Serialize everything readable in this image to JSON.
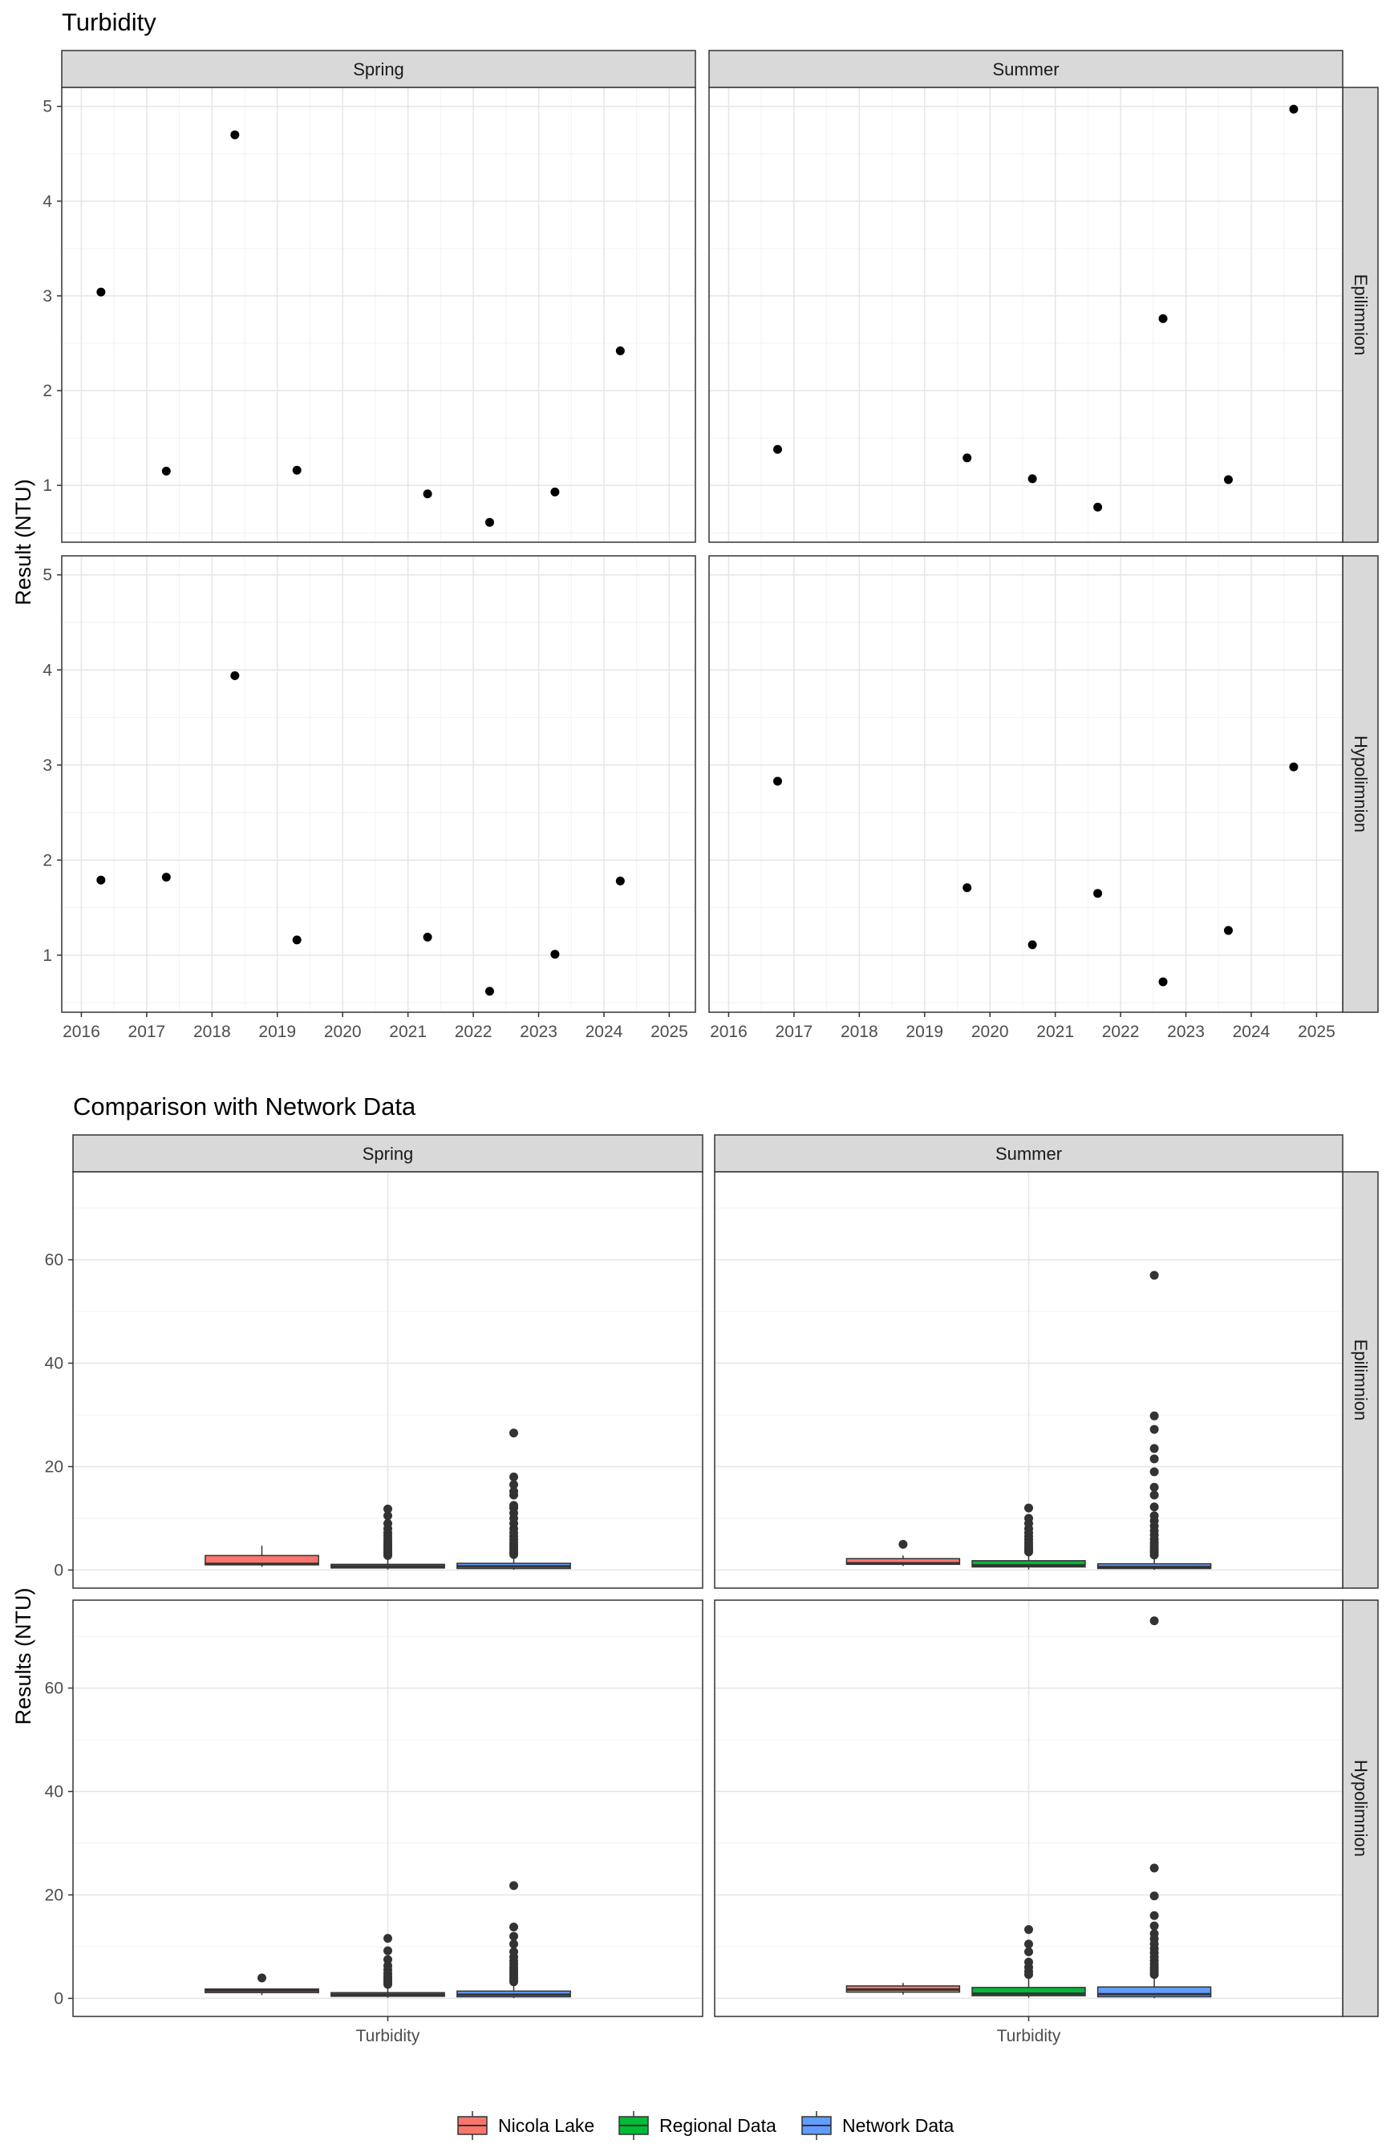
{
  "chart_data": [
    {
      "type": "scatter",
      "title": "Turbidity",
      "ylabel": "Result (NTU)",
      "xlabel": "",
      "facet_columns": [
        "Spring",
        "Summer"
      ],
      "facet_rows": [
        "Epilimnion",
        "Hypolimnion"
      ],
      "x_ticks": [
        "2016",
        "2017",
        "2018",
        "2019",
        "2020",
        "2021",
        "2022",
        "2023",
        "2024",
        "2025"
      ],
      "y_ticks": [
        "1",
        "2",
        "3",
        "4",
        "5"
      ],
      "xlim": [
        2015.7,
        2025.4
      ],
      "ylim": [
        0.4,
        5.2
      ],
      "grid": true,
      "point_color": "#000000",
      "panels": [
        {
          "column": "Spring",
          "row": "Epilimnion",
          "x": [
            2016.3,
            2017.3,
            2018.35,
            2019.3,
            2021.3,
            2022.25,
            2023.25,
            2024.25
          ],
          "y": [
            3.04,
            1.15,
            4.7,
            1.16,
            0.91,
            0.61,
            0.93,
            2.42
          ]
        },
        {
          "column": "Summer",
          "row": "Epilimnion",
          "x": [
            2016.75,
            2019.65,
            2020.65,
            2021.65,
            2022.65,
            2023.65,
            2024.65
          ],
          "y": [
            1.38,
            1.29,
            1.07,
            0.77,
            2.76,
            1.06,
            4.97
          ]
        },
        {
          "column": "Spring",
          "row": "Hypolimnion",
          "x": [
            2016.3,
            2017.3,
            2018.35,
            2019.3,
            2021.3,
            2022.25,
            2023.25,
            2024.25
          ],
          "y": [
            1.79,
            1.82,
            3.94,
            1.16,
            1.19,
            0.62,
            1.01,
            1.78
          ]
        },
        {
          "column": "Summer",
          "row": "Hypolimnion",
          "x": [
            2016.75,
            2019.65,
            2020.65,
            2021.65,
            2022.65,
            2023.65,
            2024.65
          ],
          "y": [
            2.83,
            1.71,
            1.11,
            1.65,
            0.72,
            1.26,
            2.98
          ]
        }
      ]
    },
    {
      "type": "box",
      "title": "Comparison with Network Data",
      "ylabel": "Results (NTU)",
      "xlabel": "",
      "categories": [
        "Turbidity"
      ],
      "facet_columns": [
        "Spring",
        "Summer"
      ],
      "facet_rows": [
        "Epilimnion",
        "Hypolimnion"
      ],
      "y_ticks": [
        "0",
        "20",
        "40",
        "60"
      ],
      "ylim": [
        -3.5,
        77
      ],
      "grid": true,
      "legend_position": "bottom",
      "series": [
        {
          "name": "Nicola Lake",
          "color": "#F8766D"
        },
        {
          "name": "Regional Data",
          "color": "#00BA38"
        },
        {
          "name": "Network Data",
          "color": "#619CFF"
        }
      ],
      "panels": [
        {
          "column": "Spring",
          "row": "Epilimnion",
          "boxes": [
            {
              "series": "Nicola Lake",
              "q1": 1.0,
              "median": 1.2,
              "q3": 2.8,
              "whisker_low": 0.6,
              "whisker_high": 4.7,
              "outliers": []
            },
            {
              "series": "Regional Data",
              "q1": 0.4,
              "median": 0.7,
              "q3": 1.1,
              "whisker_low": 0.1,
              "whisker_high": 2.5,
              "outliers": [
                2.8,
                3.1,
                3.4,
                3.8,
                4.2,
                4.6,
                5.0,
                5.5,
                6.0,
                6.6,
                7.2,
                8.0,
                9.0,
                10.5,
                11.8
              ]
            },
            {
              "series": "Network Data",
              "q1": 0.3,
              "median": 0.7,
              "q3": 1.3,
              "whisker_low": 0.05,
              "whisker_high": 2.8,
              "outliers": [
                3.0,
                3.4,
                3.8,
                4.3,
                4.8,
                5.3,
                5.9,
                6.5,
                7.2,
                8.0,
                9.0,
                10.0,
                11.0,
                12.0,
                12.5,
                14.5,
                15.2,
                16.5,
                18.0,
                26.5
              ]
            }
          ]
        },
        {
          "column": "Summer",
          "row": "Epilimnion",
          "boxes": [
            {
              "series": "Nicola Lake",
              "q1": 1.1,
              "median": 1.3,
              "q3": 2.2,
              "whisker_low": 0.77,
              "whisker_high": 2.8,
              "outliers": [
                4.97
              ]
            },
            {
              "series": "Regional Data",
              "q1": 0.6,
              "median": 0.9,
              "q3": 1.8,
              "whisker_low": 0.1,
              "whisker_high": 3.2,
              "outliers": [
                3.5,
                3.9,
                4.3,
                4.8,
                5.3,
                5.9,
                6.5,
                7.2,
                8.0,
                9.0,
                10.0,
                12.0
              ]
            },
            {
              "series": "Network Data",
              "q1": 0.3,
              "median": 0.6,
              "q3": 1.2,
              "whisker_low": 0.05,
              "whisker_high": 2.6,
              "outliers": [
                2.9,
                3.3,
                3.7,
                4.2,
                4.7,
                5.3,
                6.0,
                6.8,
                7.6,
                8.5,
                9.5,
                10.5,
                12.2,
                14.5,
                16.0,
                19.0,
                21.5,
                23.5,
                27.2,
                29.8,
                57.0
              ]
            }
          ]
        },
        {
          "column": "Spring",
          "row": "Hypolimnion",
          "boxes": [
            {
              "series": "Nicola Lake",
              "q1": 1.1,
              "median": 1.5,
              "q3": 1.8,
              "whisker_low": 0.62,
              "whisker_high": 1.82,
              "outliers": [
                3.94
              ]
            },
            {
              "series": "Regional Data",
              "q1": 0.4,
              "median": 0.7,
              "q3": 1.1,
              "whisker_low": 0.1,
              "whisker_high": 2.4,
              "outliers": [
                2.7,
                3.0,
                3.4,
                3.8,
                4.3,
                4.8,
                5.5,
                6.3,
                7.5,
                9.2,
                11.6
              ]
            },
            {
              "series": "Network Data",
              "q1": 0.3,
              "median": 0.7,
              "q3": 1.4,
              "whisker_low": 0.05,
              "whisker_high": 2.9,
              "outliers": [
                3.2,
                3.6,
                4.0,
                4.5,
                5.0,
                5.5,
                6.0,
                6.6,
                7.2,
                8.0,
                9.0,
                10.5,
                12.0,
                13.8,
                21.8
              ]
            }
          ]
        },
        {
          "column": "Summer",
          "row": "Hypolimnion",
          "boxes": [
            {
              "series": "Nicola Lake",
              "q1": 1.2,
              "median": 1.7,
              "q3": 2.4,
              "whisker_low": 0.72,
              "whisker_high": 2.98,
              "outliers": []
            },
            {
              "series": "Regional Data",
              "q1": 0.5,
              "median": 0.9,
              "q3": 2.1,
              "whisker_low": 0.1,
              "whisker_high": 4.2,
              "outliers": [
                4.6,
                5.2,
                6.0,
                7.0,
                9.0,
                10.5,
                13.3
              ]
            },
            {
              "series": "Network Data",
              "q1": 0.3,
              "median": 0.8,
              "q3": 2.2,
              "whisker_low": 0.05,
              "whisker_high": 4.3,
              "outliers": [
                4.6,
                5.0,
                5.5,
                6.0,
                6.6,
                7.3,
                8.0,
                8.8,
                9.6,
                10.5,
                11.5,
                12.5,
                14.0,
                16.0,
                19.8,
                25.2,
                73.0
              ]
            }
          ]
        }
      ]
    }
  ]
}
